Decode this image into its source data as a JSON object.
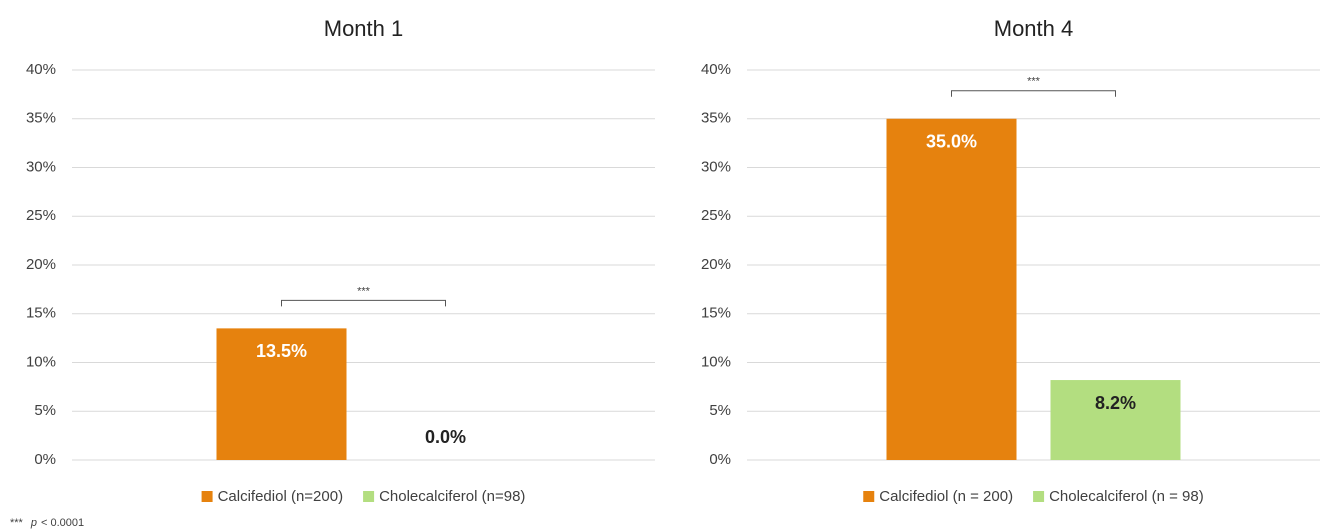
{
  "chart_data": [
    {
      "type": "bar",
      "title": "Month 1",
      "categories": [
        null
      ],
      "series": [
        {
          "name": "Calcifediol (n=200)",
          "color": "#e6820e",
          "values": [
            13.5
          ],
          "value_labels": [
            "13.5%"
          ]
        },
        {
          "name": "Cholecalciferol (n=98)",
          "color": "#b3de80",
          "values": [
            0.0
          ],
          "value_labels": [
            "0.0%"
          ]
        }
      ],
      "significance": "***",
      "ylim": [
        0,
        40
      ],
      "yticks": [
        {
          "value": 0,
          "label": "0%"
        },
        {
          "value": 5,
          "label": "5%"
        },
        {
          "value": 10,
          "label": "10%"
        },
        {
          "value": 15,
          "label": "15%"
        },
        {
          "value": 20,
          "label": "20%"
        },
        {
          "value": 25,
          "label": "25%"
        },
        {
          "value": 30,
          "label": "30%"
        },
        {
          "value": 35,
          "label": "35%"
        },
        {
          "value": 40,
          "label": "40%"
        }
      ],
      "grid": true,
      "legend": "bottom"
    },
    {
      "type": "bar",
      "title": "Month 4",
      "categories": [
        null
      ],
      "series": [
        {
          "name": "Calcifediol (n = 200)",
          "color": "#e6820e",
          "values": [
            35.0
          ],
          "value_labels": [
            "35.0%"
          ]
        },
        {
          "name": "Cholecalciferol (n = 98)",
          "color": "#b3de80",
          "values": [
            8.2
          ],
          "value_labels": [
            "8.2%"
          ]
        }
      ],
      "significance": "***",
      "ylim": [
        0,
        40
      ],
      "yticks": [
        {
          "value": 0,
          "label": "0%"
        },
        {
          "value": 5,
          "label": "5%"
        },
        {
          "value": 10,
          "label": "10%"
        },
        {
          "value": 15,
          "label": "15%"
        },
        {
          "value": 20,
          "label": "20%"
        },
        {
          "value": 25,
          "label": "25%"
        },
        {
          "value": 30,
          "label": "30%"
        },
        {
          "value": 35,
          "label": "35%"
        },
        {
          "value": 40,
          "label": "40%"
        }
      ],
      "grid": true,
      "legend": "bottom"
    }
  ],
  "footnote": {
    "stars": "***",
    "p": "p",
    "condition": "< 0.0001"
  }
}
